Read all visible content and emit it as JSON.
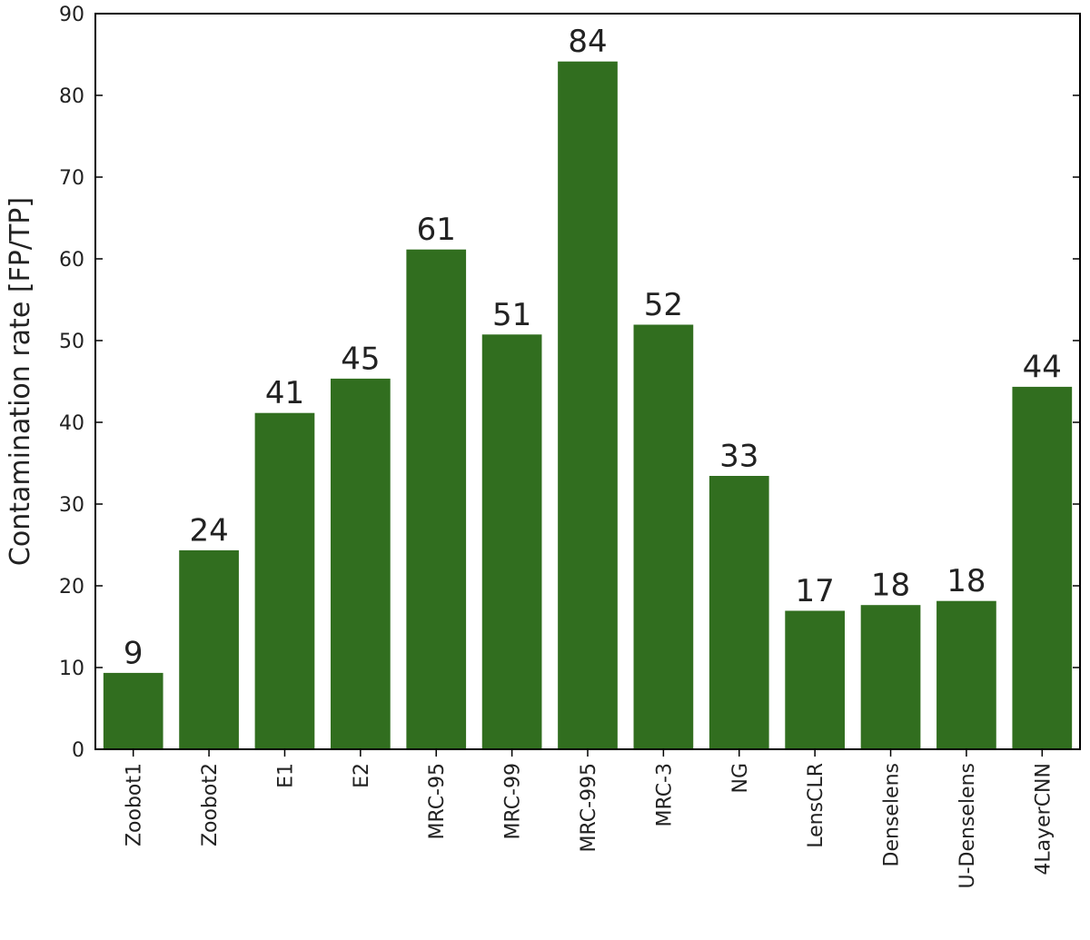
{
  "chart_data": {
    "type": "bar",
    "categories": [
      "Zoobot1",
      "Zoobot2",
      "E1",
      "E2",
      "MRC-95",
      "MRC-99",
      "MRC-995",
      "MRC-3",
      "NG",
      "LensCLR",
      "Denselens",
      "U-Denselens",
      "4LayerCNN"
    ],
    "values": [
      9.4,
      24.4,
      41.2,
      45.4,
      61.2,
      50.8,
      84.2,
      52.0,
      33.5,
      17.0,
      17.7,
      18.2,
      44.4
    ],
    "data_labels": [
      "9",
      "24",
      "41",
      "45",
      "61",
      "51",
      "84",
      "52",
      "33",
      "17",
      "18",
      "18",
      "44"
    ],
    "ylabel": "Contamination rate [FP/TP]",
    "ylim": [
      0,
      90
    ],
    "yticks": [
      "0",
      "10",
      "20",
      "30",
      "40",
      "50",
      "60",
      "70",
      "80",
      "90"
    ],
    "grid": false,
    "bar_color": "#316e1f"
  }
}
